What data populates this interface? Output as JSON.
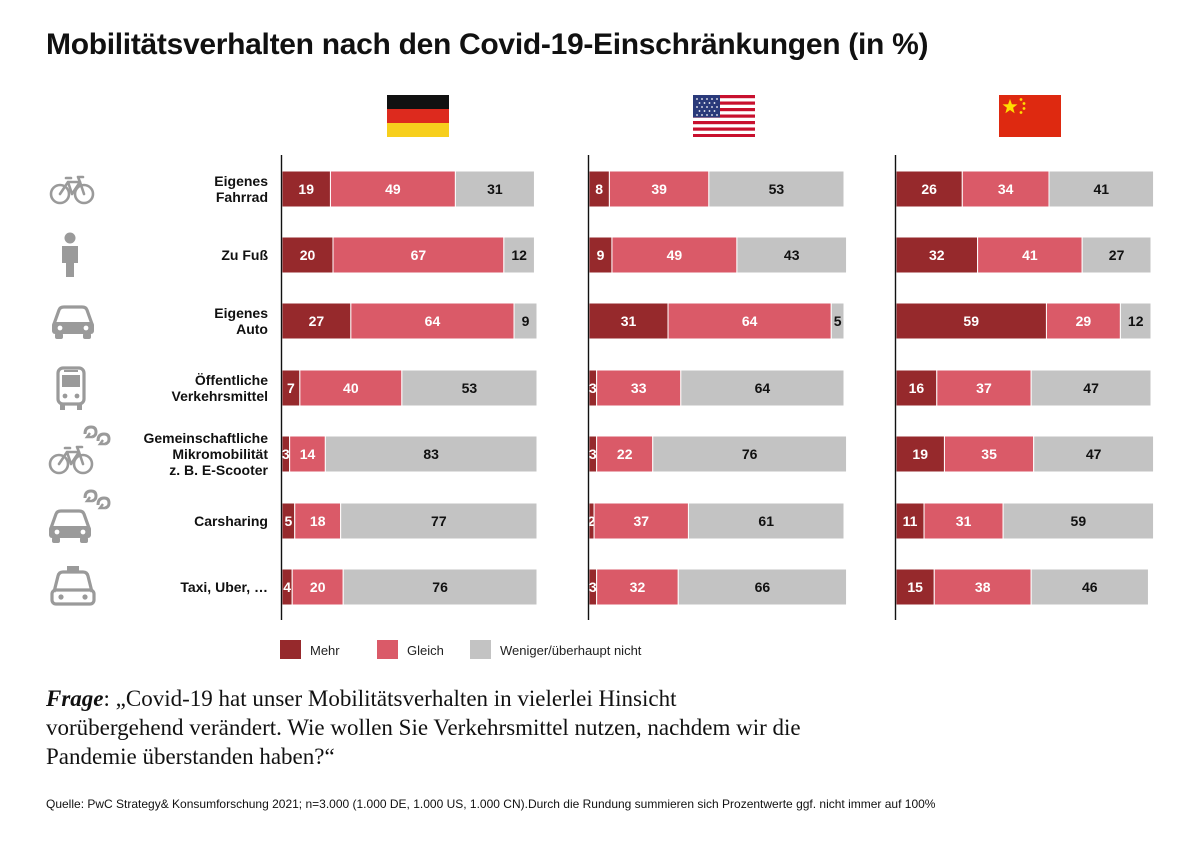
{
  "title": "Mobilitätsverhalten nach den Covid-19-Einschränkungen (in %)",
  "chart_data": {
    "type": "bar",
    "orientation": "horizontal-stacked",
    "title": "Mobilitätsverhalten nach den Covid-19-Einschränkungen (in %)",
    "unit": "%",
    "categories": [
      [
        "Eigenes",
        "Fahrrad"
      ],
      [
        "Zu Fuß"
      ],
      [
        "Eigenes",
        "Auto"
      ],
      [
        "Öffentliche",
        "Verkehrsmittel"
      ],
      [
        "Gemeinschaftliche",
        "Mikromobilität",
        "z. B. E-Scooter"
      ],
      [
        "Carsharing"
      ],
      [
        "Taxi, Uber, …"
      ]
    ],
    "category_icons": [
      "bicycle-icon",
      "pedestrian-icon",
      "car-icon",
      "bus-icon",
      "shared-bicycle-icon",
      "shared-car-icon",
      "taxi-icon"
    ],
    "legend": [
      {
        "name": "Mehr",
        "color": "#96292c"
      },
      {
        "name": "Gleich",
        "color": "#da5a68"
      },
      {
        "name": "Weniger/überhaupt nicht",
        "color": "#c3c3c3"
      }
    ],
    "panels": [
      {
        "country": "DE",
        "flag": "germany-flag-icon",
        "series": [
          {
            "name": "Mehr",
            "values": [
              19,
              20,
              27,
              7,
              3,
              5,
              4
            ]
          },
          {
            "name": "Gleich",
            "values": [
              49,
              67,
              64,
              40,
              14,
              18,
              20
            ]
          },
          {
            "name": "Weniger/überhaupt nicht",
            "values": [
              31,
              12,
              9,
              53,
              83,
              77,
              76
            ]
          }
        ]
      },
      {
        "country": "US",
        "flag": "usa-flag-icon",
        "series": [
          {
            "name": "Mehr",
            "values": [
              8,
              9,
              31,
              3,
              3,
              2,
              3
            ]
          },
          {
            "name": "Gleich",
            "values": [
              39,
              49,
              64,
              33,
              22,
              37,
              32
            ]
          },
          {
            "name": "Weniger/überhaupt nicht",
            "values": [
              53,
              43,
              5,
              64,
              76,
              61,
              66
            ]
          }
        ]
      },
      {
        "country": "CN",
        "flag": "china-flag-icon",
        "series": [
          {
            "name": "Mehr",
            "values": [
              26,
              32,
              59,
              16,
              19,
              11,
              15
            ]
          },
          {
            "name": "Gleich",
            "values": [
              34,
              41,
              29,
              37,
              35,
              31,
              38
            ]
          },
          {
            "name": "Weniger/überhaupt nicht",
            "values": [
              41,
              27,
              12,
              47,
              47,
              59,
              46
            ]
          }
        ]
      }
    ],
    "xlim": [
      0,
      100
    ]
  },
  "question": {
    "label": "Frage",
    "text": ": „Covid-19 hat unser Mobilitätsverhalten in vielerlei Hinsicht vorübergehend verändert. Wie wollen Sie Verkehrsmittel nutzen, nachdem wir die Pandemie überstanden haben?“"
  },
  "source": "Quelle: PwC Strategy& Konsumforschung 2021; n=3.000 (1.000 DE, 1.000 US, 1.000 CN).Durch die Rundung summieren sich Prozentwerte ggf. nicht immer auf 100%",
  "colors": {
    "mehr": "#96292c",
    "gleich": "#da5a68",
    "weniger": "#c3c3c3",
    "icon": "#9a9a9a"
  }
}
